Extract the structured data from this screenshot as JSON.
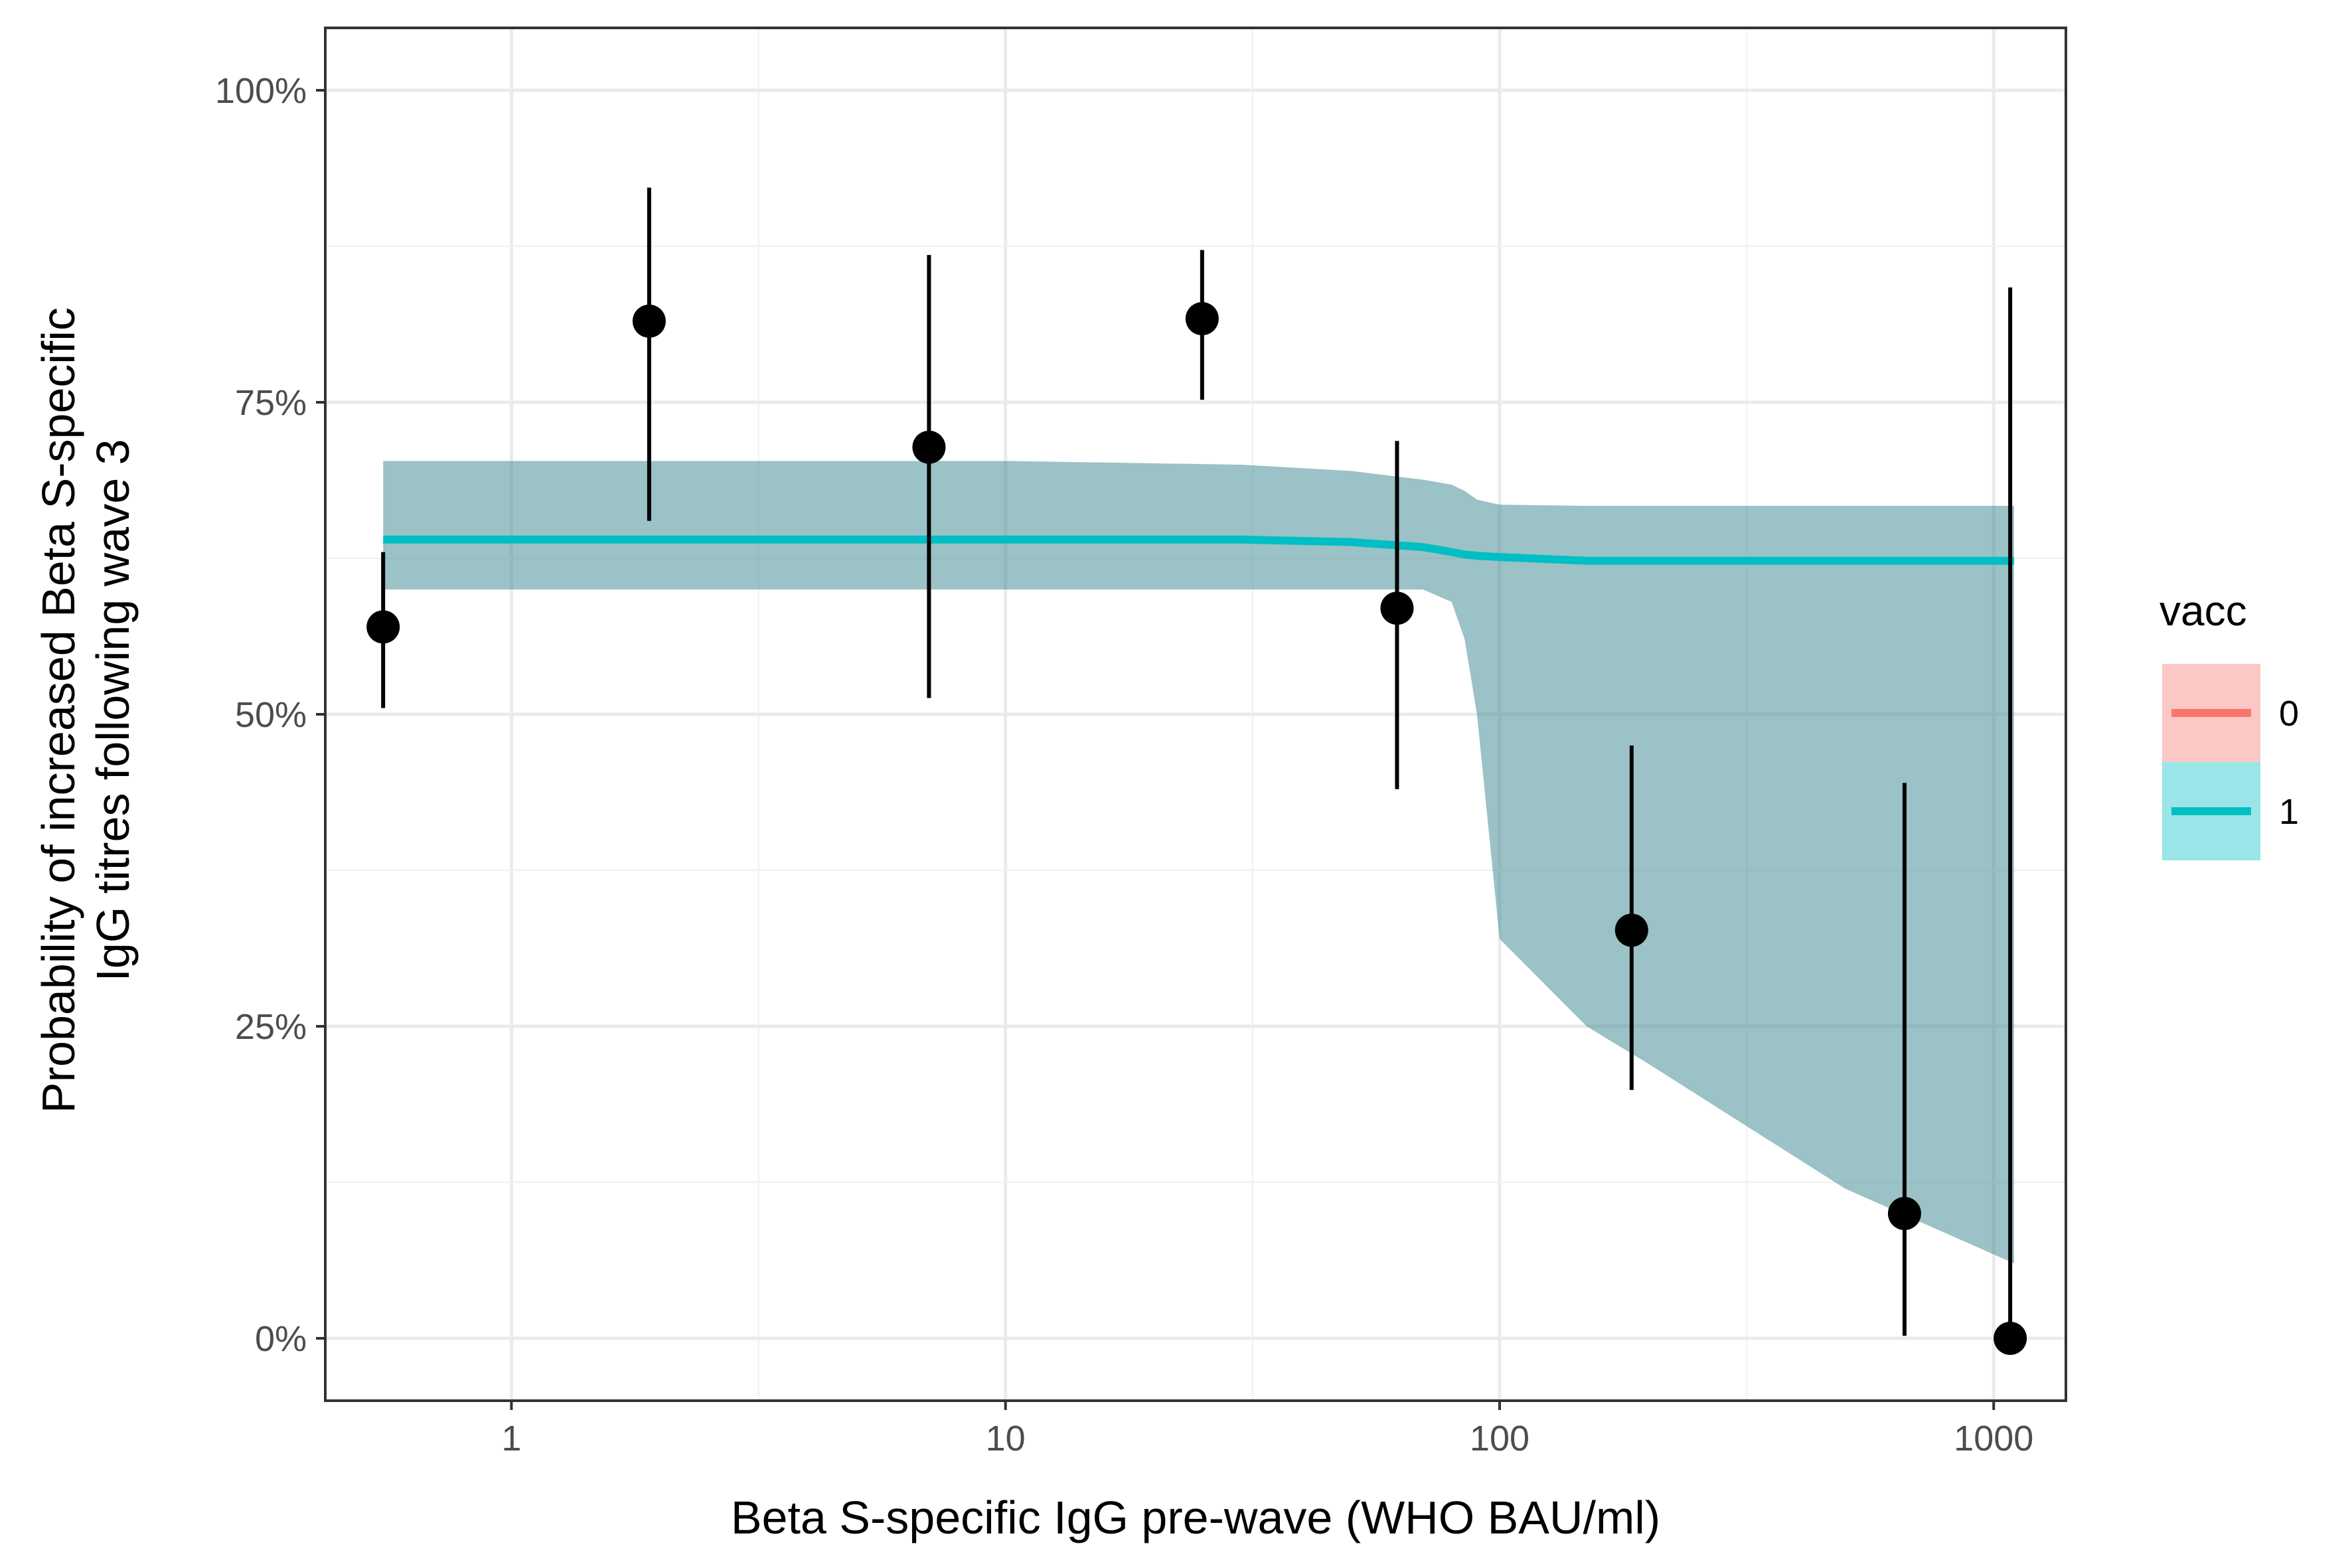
{
  "chart_data": {
    "type": "line",
    "xlabel": "Beta S-specific IgG pre-wave (WHO BAU/ml)",
    "ylabel_lines": [
      "Probability of increased Beta S-specific",
      "IgG titres following wave 3"
    ],
    "x_scale": "log10",
    "xlim": [
      0.42,
      1400
    ],
    "ylim": [
      -0.05,
      1.05
    ],
    "x_ticks": [
      {
        "value": 1,
        "label": "1"
      },
      {
        "value": 10,
        "label": "10"
      },
      {
        "value": 100,
        "label": "100"
      },
      {
        "value": 1000,
        "label": "1000"
      }
    ],
    "y_ticks": [
      {
        "value": 0,
        "label": "0%"
      },
      {
        "value": 0.25,
        "label": "25%"
      },
      {
        "value": 0.5,
        "label": "50%"
      },
      {
        "value": 0.75,
        "label": "75%"
      },
      {
        "value": 1,
        "label": "100%"
      }
    ],
    "grid": true,
    "legend": {
      "title": "vacc",
      "position": "right",
      "entries": [
        {
          "label": "0",
          "line_color": "#F8766D",
          "fill_color": "#F8766D"
        },
        {
          "label": "1",
          "line_color": "#00BFC4",
          "fill_color": "#00BFC4"
        }
      ]
    },
    "series": [
      {
        "name": "1",
        "color": "#00BFC4",
        "band_color": "#37868D",
        "x": [
          0.55,
          1,
          5,
          10,
          30,
          50,
          70,
          80,
          85,
          90,
          100,
          150,
          200,
          500,
          1100
        ],
        "y": [
          0.64,
          0.64,
          0.64,
          0.64,
          0.64,
          0.638,
          0.634,
          0.63,
          0.628,
          0.627,
          0.626,
          0.623,
          0.623,
          0.623,
          0.623
        ],
        "lower": [
          0.6,
          0.6,
          0.6,
          0.6,
          0.6,
          0.6,
          0.6,
          0.59,
          0.56,
          0.5,
          0.32,
          0.25,
          0.22,
          0.12,
          0.06
        ],
        "upper": [
          0.703,
          0.703,
          0.703,
          0.703,
          0.7,
          0.695,
          0.688,
          0.684,
          0.679,
          0.672,
          0.668,
          0.667,
          0.667,
          0.667,
          0.667
        ]
      }
    ],
    "points": [
      {
        "x": 0.55,
        "y": 0.57,
        "ymin": 0.505,
        "ymax": 0.63
      },
      {
        "x": 1.9,
        "y": 0.815,
        "ymin": 0.655,
        "ymax": 0.922
      },
      {
        "x": 7.0,
        "y": 0.714,
        "ymin": 0.513,
        "ymax": 0.868
      },
      {
        "x": 25,
        "y": 0.817,
        "ymin": 0.752,
        "ymax": 0.872
      },
      {
        "x": 62,
        "y": 0.585,
        "ymin": 0.44,
        "ymax": 0.719
      },
      {
        "x": 185,
        "y": 0.327,
        "ymin": 0.199,
        "ymax": 0.475
      },
      {
        "x": 660,
        "y": 0.1,
        "ymin": 0.002,
        "ymax": 0.445
      },
      {
        "x": 1080,
        "y": 0.0,
        "ymin": 0.0,
        "ymax": 0.842
      }
    ]
  }
}
